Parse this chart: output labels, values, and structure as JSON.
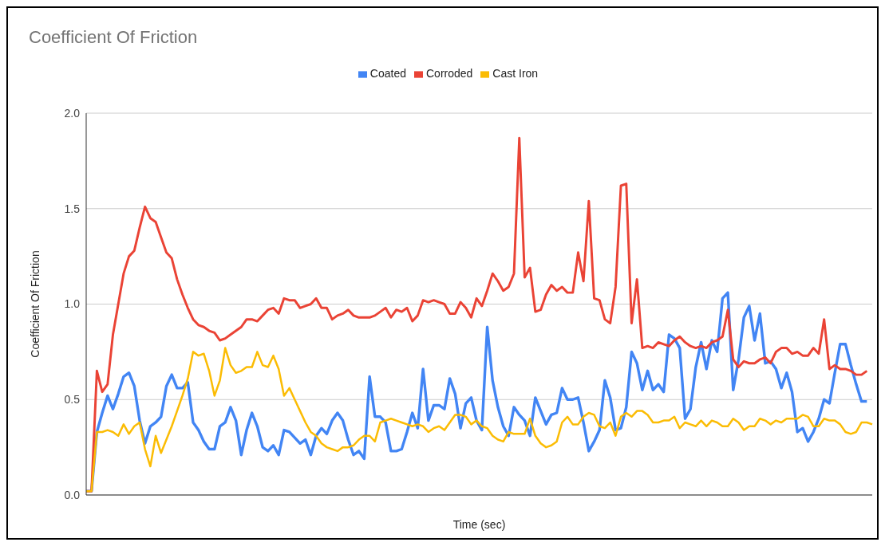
{
  "chart_data": {
    "type": "line",
    "title": "Coefficient Of Friction",
    "xlabel": "Time (sec)",
    "ylabel": "Coefficient Of Friction",
    "categories": [
      null,
      null,
      null,
      null,
      null,
      null,
      null,
      null,
      null,
      null,
      null,
      null,
      null,
      null,
      null,
      null,
      null,
      null,
      null,
      null,
      null,
      null,
      null,
      null,
      null,
      null,
      null,
      null,
      null,
      null,
      null,
      null,
      null,
      null,
      null,
      null,
      null,
      null,
      null,
      null,
      null,
      null,
      null,
      null,
      null,
      null,
      null,
      null,
      null,
      null,
      null,
      null,
      null,
      null,
      null,
      null,
      null,
      null,
      null,
      null,
      null,
      null,
      null,
      null,
      null,
      null,
      null,
      null,
      null,
      null,
      null,
      null,
      null,
      null,
      null,
      null,
      null,
      null,
      null,
      null,
      null,
      null,
      null,
      null,
      null,
      null,
      null,
      null,
      null,
      null,
      null,
      null,
      null,
      null,
      null,
      null,
      null,
      null,
      null,
      null,
      null,
      null,
      null,
      null,
      null,
      null,
      null,
      null,
      null,
      null,
      null,
      null,
      null,
      null,
      null,
      null,
      null,
      null,
      null,
      null,
      null,
      null,
      null,
      null,
      null,
      null,
      null,
      null,
      null,
      null,
      null,
      null,
      null,
      null,
      null,
      null,
      null,
      null,
      null,
      null,
      null,
      null,
      null,
      null,
      null,
      null,
      null,
      null
    ],
    "series": [
      {
        "name": "Coated",
        "color": "#4285f4",
        "values": [
          0.02,
          0.02,
          0.33,
          0.43,
          0.52,
          0.45,
          0.53,
          0.62,
          0.64,
          0.57,
          0.39,
          0.27,
          0.36,
          0.38,
          0.41,
          0.57,
          0.63,
          0.56,
          0.56,
          0.59,
          0.38,
          0.34,
          0.28,
          0.24,
          0.24,
          0.36,
          0.38,
          0.46,
          0.39,
          0.21,
          0.34,
          0.43,
          0.36,
          0.25,
          0.23,
          0.26,
          0.21,
          0.34,
          0.33,
          0.3,
          0.27,
          0.29,
          0.21,
          0.31,
          0.35,
          0.32,
          0.39,
          0.43,
          0.39,
          0.29,
          0.21,
          0.23,
          0.19,
          0.62,
          0.41,
          0.41,
          0.38,
          0.23,
          0.23,
          0.24,
          0.33,
          0.43,
          0.35,
          0.66,
          0.39,
          0.47,
          0.47,
          0.45,
          0.61,
          0.53,
          0.35,
          0.48,
          0.51,
          0.39,
          0.34,
          0.88,
          0.6,
          0.46,
          0.36,
          0.31,
          0.46,
          0.42,
          0.39,
          0.31,
          0.51,
          0.44,
          0.37,
          0.42,
          0.43,
          0.56,
          0.5,
          0.5,
          0.51,
          0.38,
          0.23,
          0.28,
          0.34,
          0.6,
          0.51,
          0.34,
          0.35,
          0.46,
          0.75,
          0.69,
          0.55,
          0.65,
          0.55,
          0.58,
          0.54,
          0.84,
          0.82,
          0.77,
          0.4,
          0.45,
          0.67,
          0.8,
          0.66,
          0.81,
          0.75,
          1.03,
          1.06,
          0.55,
          0.71,
          0.93,
          0.99,
          0.81,
          0.95,
          0.69,
          0.7,
          0.66,
          0.56,
          0.64,
          0.54,
          0.33,
          0.35,
          0.28,
          0.33,
          0.4,
          0.5,
          0.48,
          0.64,
          0.79,
          0.79,
          0.68,
          0.58,
          0.49,
          0.49,
          null
        ]
      },
      {
        "name": "Corroded",
        "color": "#ea4335",
        "values": [
          0.02,
          0.02,
          0.65,
          0.54,
          0.58,
          0.84,
          1.0,
          1.16,
          1.25,
          1.28,
          1.4,
          1.51,
          1.45,
          1.43,
          1.35,
          1.27,
          1.24,
          1.13,
          1.05,
          0.98,
          0.92,
          0.89,
          0.88,
          0.86,
          0.85,
          0.81,
          0.82,
          0.84,
          0.86,
          0.88,
          0.92,
          0.92,
          0.91,
          0.94,
          0.97,
          0.98,
          0.95,
          1.03,
          1.02,
          1.02,
          0.98,
          0.99,
          1.0,
          1.03,
          0.98,
          0.98,
          0.92,
          0.94,
          0.95,
          0.97,
          0.94,
          0.93,
          0.93,
          0.93,
          0.94,
          0.96,
          0.98,
          0.93,
          0.97,
          0.96,
          0.98,
          0.91,
          0.94,
          1.02,
          1.01,
          1.02,
          1.01,
          1.0,
          0.95,
          0.95,
          1.01,
          0.98,
          0.93,
          1.03,
          0.99,
          1.07,
          1.16,
          1.12,
          1.07,
          1.09,
          1.16,
          1.87,
          1.14,
          1.19,
          0.96,
          0.97,
          1.05,
          1.1,
          1.07,
          1.09,
          1.06,
          1.06,
          1.27,
          1.12,
          1.54,
          1.03,
          1.02,
          0.92,
          0.9,
          1.09,
          1.62,
          1.63,
          0.9,
          1.13,
          0.77,
          0.78,
          0.77,
          0.8,
          0.79,
          0.78,
          0.81,
          0.83,
          0.8,
          0.78,
          0.77,
          0.78,
          0.77,
          0.8,
          0.81,
          0.83,
          0.97,
          0.71,
          0.67,
          0.7,
          0.69,
          0.69,
          0.71,
          0.72,
          0.69,
          0.75,
          0.77,
          0.77,
          0.74,
          0.75,
          0.73,
          0.73,
          0.77,
          0.74,
          0.92,
          0.66,
          0.68,
          0.66,
          0.66,
          0.65,
          0.63,
          0.63,
          0.65,
          null
        ]
      },
      {
        "name": "Cast Iron",
        "color": "#fbbc04",
        "values": [
          0.02,
          0.02,
          0.33,
          0.33,
          0.34,
          0.33,
          0.31,
          0.37,
          0.32,
          0.36,
          0.38,
          0.24,
          0.15,
          0.31,
          0.22,
          0.29,
          0.36,
          0.44,
          0.52,
          0.61,
          0.75,
          0.73,
          0.74,
          0.65,
          0.52,
          0.6,
          0.77,
          0.68,
          0.64,
          0.65,
          0.67,
          0.67,
          0.75,
          0.68,
          0.67,
          0.73,
          0.66,
          0.52,
          0.56,
          0.5,
          0.44,
          0.38,
          0.33,
          0.31,
          0.27,
          0.25,
          0.24,
          0.23,
          0.25,
          0.25,
          0.26,
          0.29,
          0.31,
          0.31,
          0.28,
          0.38,
          0.39,
          0.4,
          0.39,
          0.38,
          0.37,
          0.36,
          0.37,
          0.36,
          0.33,
          0.35,
          0.36,
          0.34,
          0.38,
          0.42,
          0.42,
          0.41,
          0.37,
          0.39,
          0.36,
          0.35,
          0.31,
          0.29,
          0.28,
          0.33,
          0.32,
          0.32,
          0.32,
          0.4,
          0.31,
          0.27,
          0.25,
          0.26,
          0.28,
          0.38,
          0.41,
          0.37,
          0.37,
          0.41,
          0.43,
          0.42,
          0.36,
          0.35,
          0.38,
          0.31,
          0.41,
          0.43,
          0.41,
          0.44,
          0.44,
          0.42,
          0.38,
          0.38,
          0.39,
          0.39,
          0.41,
          0.35,
          0.38,
          0.37,
          0.36,
          0.39,
          0.36,
          0.39,
          0.38,
          0.36,
          0.36,
          0.4,
          0.38,
          0.34,
          0.36,
          0.36,
          0.4,
          0.39,
          0.37,
          0.39,
          0.38,
          0.4,
          0.4,
          0.4,
          0.42,
          0.41,
          0.36,
          0.36,
          0.4,
          0.39,
          0.39,
          0.37,
          0.33,
          0.32,
          0.33,
          0.38,
          0.38,
          0.37
        ]
      }
    ],
    "ylim": [
      0,
      2
    ],
    "yticks": [
      {
        "value": 0,
        "label": "0.0"
      },
      {
        "value": 0.5,
        "label": "0.5"
      },
      {
        "value": 1,
        "label": "1.0"
      },
      {
        "value": 1.5,
        "label": "1.5"
      },
      {
        "value": 2,
        "label": "2.0"
      }
    ],
    "grid": "y",
    "legend": "top",
    "tick_labels": "y"
  }
}
